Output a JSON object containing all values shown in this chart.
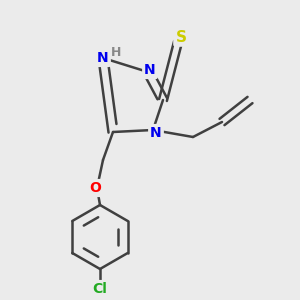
{
  "bg_color": "#ebebeb",
  "atom_colors": {
    "N": "#0000ee",
    "S": "#cccc00",
    "O": "#ff0000",
    "Cl": "#22aa22",
    "C": "#404040",
    "H": "#888888"
  },
  "bond_color": "#404040",
  "bond_width": 1.8,
  "figsize": [
    3.0,
    3.0
  ],
  "dpi": 100
}
